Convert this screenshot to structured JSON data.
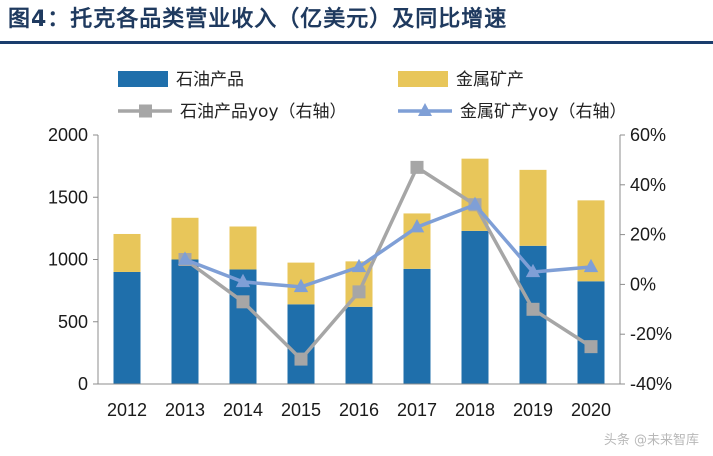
{
  "title": "图4：托克各品类营业收入（亿美元）及同比增速",
  "watermark": "头条 @未来智库",
  "colors": {
    "oil": "#1f6fab",
    "metal": "#e8c65a",
    "oil_yoy": "#a6a6a6",
    "metal_yoy": "#7f9fd6",
    "title": "#1f3a5f"
  },
  "chart_data": {
    "type": "bar",
    "stacked": true,
    "categories": [
      "2012",
      "2013",
      "2014",
      "2015",
      "2016",
      "2017",
      "2018",
      "2019",
      "2020"
    ],
    "series": [
      {
        "name": "石油产品",
        "type": "bar",
        "axis": "left",
        "values": [
          900,
          1000,
          920,
          640,
          620,
          925,
          1230,
          1110,
          825
        ]
      },
      {
        "name": "金属矿产",
        "type": "bar",
        "axis": "left",
        "values": [
          305,
          335,
          345,
          335,
          365,
          445,
          580,
          610,
          650
        ]
      },
      {
        "name": "石油产品yoy（右轴）",
        "type": "line",
        "axis": "right",
        "marker": "square",
        "values": [
          null,
          10,
          -7,
          -30,
          -3,
          47,
          32,
          -10,
          -25
        ]
      },
      {
        "name": "金属矿产yoy（右轴）",
        "type": "line",
        "axis": "right",
        "marker": "triangle",
        "values": [
          null,
          10,
          1,
          -1,
          7,
          23,
          32,
          5,
          7
        ]
      }
    ],
    "ylim": [
      0,
      2000
    ],
    "yticks": [
      0,
      500,
      1000,
      1500,
      2000
    ],
    "y2lim": [
      -40,
      60
    ],
    "y2ticks": [
      -40,
      -20,
      0,
      20,
      40,
      60
    ],
    "y2tick_labels": [
      "-40%",
      "-20%",
      "0%",
      "20%",
      "40%",
      "60%"
    ],
    "legend": [
      {
        "label": "石油产品",
        "kind": "bar",
        "series": 0
      },
      {
        "label": "金属矿产",
        "kind": "bar",
        "series": 1
      },
      {
        "label": "石油产品yoy（右轴）",
        "kind": "line",
        "series": 2
      },
      {
        "label": "金属矿产yoy（右轴）",
        "kind": "line",
        "series": 3
      }
    ],
    "legend_position": "top"
  }
}
